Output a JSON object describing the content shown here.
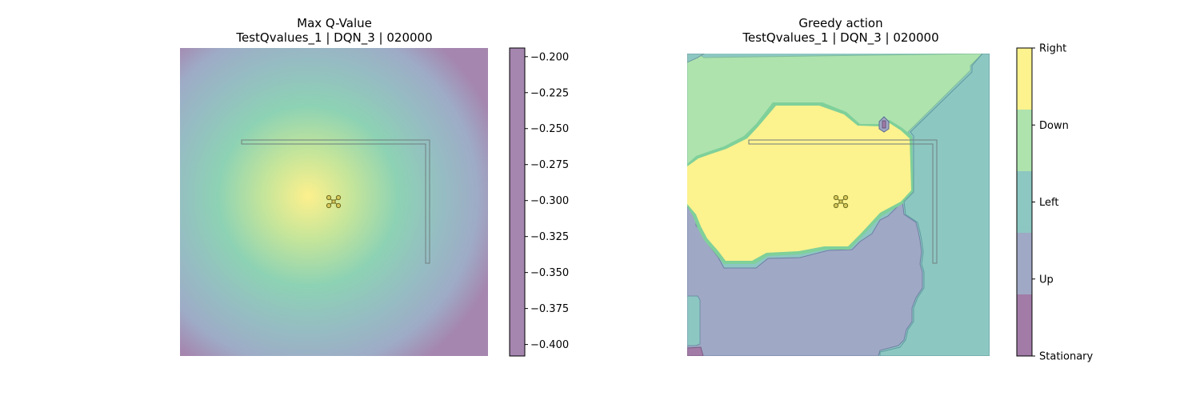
{
  "chart_data": [
    {
      "type": "heatmap",
      "title": "Max Q-Value",
      "subtitle": "TestQvalues_1 | DQN_3 | 020000",
      "colormap": "viridis",
      "alpha": 0.5,
      "vmin": -0.408,
      "vmax": -0.194,
      "peak": {
        "value": -0.197,
        "location": "center-left"
      },
      "minimum": {
        "value": -0.405,
        "location": "corners"
      },
      "colorbar": {
        "ticks": [
          -0.2,
          -0.225,
          -0.25,
          -0.275,
          -0.3,
          -0.325,
          -0.35,
          -0.375,
          -0.4
        ],
        "tick_labels": [
          "−0.200",
          "−0.225",
          "−0.250",
          "−0.275",
          "−0.300",
          "−0.325",
          "−0.350",
          "−0.375",
          "−0.400"
        ]
      },
      "overlay": [
        "wall-outline",
        "drone-icon"
      ],
      "axes": "off"
    },
    {
      "type": "heatmap",
      "title": "Greedy action",
      "subtitle": "TestQvalues_1 | DQN_3 | 020000",
      "colormap": "viridis",
      "alpha": 0.5,
      "categories": [
        "Stationary",
        "Up",
        "Left",
        "Down",
        "Right"
      ],
      "category_colors": {
        "Stationary": "#a27ba7",
        "Up": "#9fa8c5",
        "Left": "#8dc7c2",
        "Down": "#aee3ae",
        "Right": "#fcf28e"
      },
      "colorbar": {
        "tick_labels": [
          "Right",
          "Down",
          "Left",
          "Up",
          "Stationary"
        ]
      },
      "overlay": [
        "wall-outline",
        "drone-icon"
      ],
      "axes": "off"
    }
  ]
}
